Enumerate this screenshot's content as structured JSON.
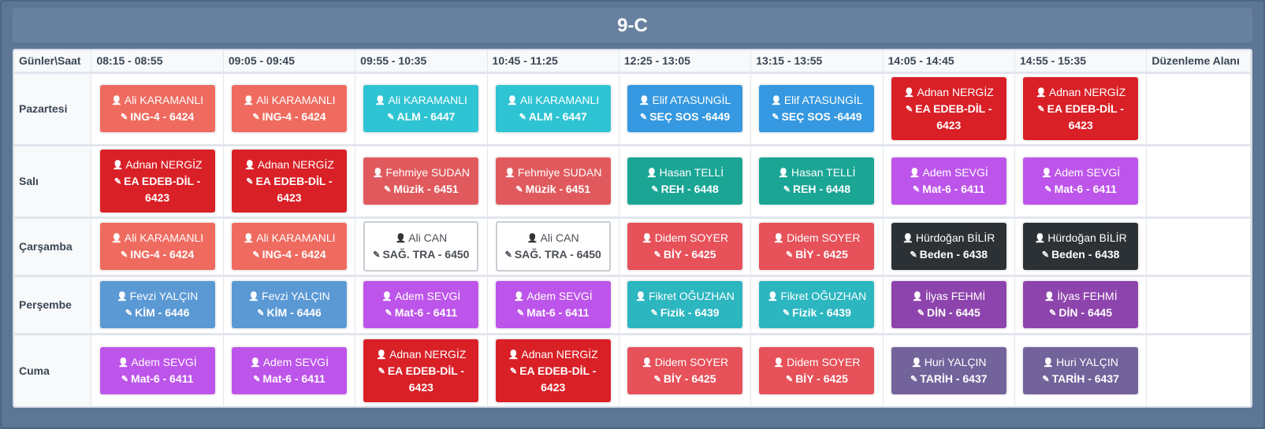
{
  "title": "9-C",
  "header": {
    "corner": "Günler\\Saat",
    "slots": [
      "08:15 - 08:55",
      "09:05 - 09:45",
      "09:55 - 10:35",
      "10:45 - 11:25",
      "12:25 - 13:05",
      "13:15 - 13:55",
      "14:05 - 14:45",
      "14:55 - 15:35"
    ],
    "edit_area": "Düzenleme Alanı"
  },
  "icons": {
    "teacher": "user-icon",
    "course": "edit-icon"
  },
  "colors": {
    "salmon": "#ef6b5f",
    "cyan": "#2fc4d3",
    "blue": "#3598e0",
    "red": "#d92027",
    "rose": "#e05a5d",
    "teal": "#1aa595",
    "purple": "#bd55ea",
    "crimson": "#e6515a",
    "dark": "#2c3136",
    "steel": "#5b99d4",
    "teal2": "#2cb6c0",
    "violet": "#8e44ad",
    "slate": "#73639b",
    "white": "#ffffff"
  },
  "days": [
    {
      "name": "Pazartesi",
      "key": "pazartesi",
      "cells": [
        {
          "teacher": "Ali KARAMANLI",
          "course": "ING-4 - 6424",
          "color": "salmon"
        },
        {
          "teacher": "Ali KARAMANLI",
          "course": "ING-4 - 6424",
          "color": "salmon"
        },
        {
          "teacher": "Ali KARAMANLI",
          "course": "ALM - 6447",
          "color": "cyan"
        },
        {
          "teacher": "Ali KARAMANLI",
          "course": "ALM - 6447",
          "color": "cyan"
        },
        {
          "teacher": "Elif ATASUNGİL",
          "course": "SEÇ SOS -6449",
          "color": "blue"
        },
        {
          "teacher": "Elif ATASUNGİL",
          "course": "SEÇ SOS -6449",
          "color": "blue"
        },
        {
          "teacher": "Adnan NERGİZ",
          "course": "EA EDEB-DİL - 6423",
          "color": "red"
        },
        {
          "teacher": "Adnan NERGİZ",
          "course": "EA EDEB-DİL - 6423",
          "color": "red"
        }
      ]
    },
    {
      "name": "Salı",
      "key": "sali",
      "cells": [
        {
          "teacher": "Adnan NERGİZ",
          "course": "EA EDEB-DİL - 6423",
          "color": "red"
        },
        {
          "teacher": "Adnan NERGİZ",
          "course": "EA EDEB-DİL - 6423",
          "color": "red"
        },
        {
          "teacher": "Fehmiye SUDAN",
          "course": "Müzik - 6451",
          "color": "rose"
        },
        {
          "teacher": "Fehmiye SUDAN",
          "course": "Müzik - 6451",
          "color": "rose"
        },
        {
          "teacher": "Hasan TELLİ",
          "course": "REH - 6448",
          "color": "teal"
        },
        {
          "teacher": "Hasan TELLİ",
          "course": "REH - 6448",
          "color": "teal"
        },
        {
          "teacher": "Adem SEVGİ",
          "course": "Mat-6 - 6411",
          "color": "purple"
        },
        {
          "teacher": "Adem SEVGİ",
          "course": "Mat-6 - 6411",
          "color": "purple"
        }
      ]
    },
    {
      "name": "Çarşamba",
      "key": "carsamba",
      "cells": [
        {
          "teacher": "Ali KARAMANLI",
          "course": "ING-4 - 6424",
          "color": "salmon"
        },
        {
          "teacher": "Ali KARAMANLI",
          "course": "ING-4 - 6424",
          "color": "salmon"
        },
        {
          "teacher": "Ali CAN",
          "course": "SAĞ. TRA - 6450",
          "color": "white"
        },
        {
          "teacher": "Ali CAN",
          "course": "SAĞ. TRA - 6450",
          "color": "white"
        },
        {
          "teacher": "Didem SOYER",
          "course": "BİY - 6425",
          "color": "crimson"
        },
        {
          "teacher": "Didem SOYER",
          "course": "BİY - 6425",
          "color": "crimson"
        },
        {
          "teacher": "Hürdoğan BİLİR",
          "course": "Beden - 6438",
          "color": "dark"
        },
        {
          "teacher": "Hürdoğan BİLİR",
          "course": "Beden - 6438",
          "color": "dark"
        }
      ]
    },
    {
      "name": "Perşembe",
      "key": "persembe",
      "cells": [
        {
          "teacher": "Fevzi YALÇIN",
          "course": "KİM - 6446",
          "color": "steel"
        },
        {
          "teacher": "Fevzi YALÇIN",
          "course": "KİM - 6446",
          "color": "steel"
        },
        {
          "teacher": "Adem SEVGİ",
          "course": "Mat-6 - 6411",
          "color": "purple"
        },
        {
          "teacher": "Adem SEVGİ",
          "course": "Mat-6 - 6411",
          "color": "purple"
        },
        {
          "teacher": "Fikret OĞUZHAN",
          "course": "Fizik - 6439",
          "color": "teal2"
        },
        {
          "teacher": "Fikret OĞUZHAN",
          "course": "Fizik - 6439",
          "color": "teal2"
        },
        {
          "teacher": "İlyas FEHMİ",
          "course": "DİN - 6445",
          "color": "violet"
        },
        {
          "teacher": "İlyas FEHMİ",
          "course": "DİN - 6445",
          "color": "violet"
        }
      ]
    },
    {
      "name": "Cuma",
      "key": "cuma",
      "cells": [
        {
          "teacher": "Adem SEVGİ",
          "course": "Mat-6 - 6411",
          "color": "purple"
        },
        {
          "teacher": "Adem SEVGİ",
          "course": "Mat-6 - 6411",
          "color": "purple"
        },
        {
          "teacher": "Adnan NERGİZ",
          "course": "EA EDEB-DİL - 6423",
          "color": "red"
        },
        {
          "teacher": "Adnan NERGİZ",
          "course": "EA EDEB-DİL - 6423",
          "color": "red"
        },
        {
          "teacher": "Didem SOYER",
          "course": "BİY - 6425",
          "color": "crimson"
        },
        {
          "teacher": "Didem SOYER",
          "course": "BİY - 6425",
          "color": "crimson"
        },
        {
          "teacher": "Huri YALÇIN",
          "course": "TARİH - 6437",
          "color": "slate"
        },
        {
          "teacher": "Huri YALÇIN",
          "course": "TARİH - 6437",
          "color": "slate"
        }
      ]
    }
  ]
}
